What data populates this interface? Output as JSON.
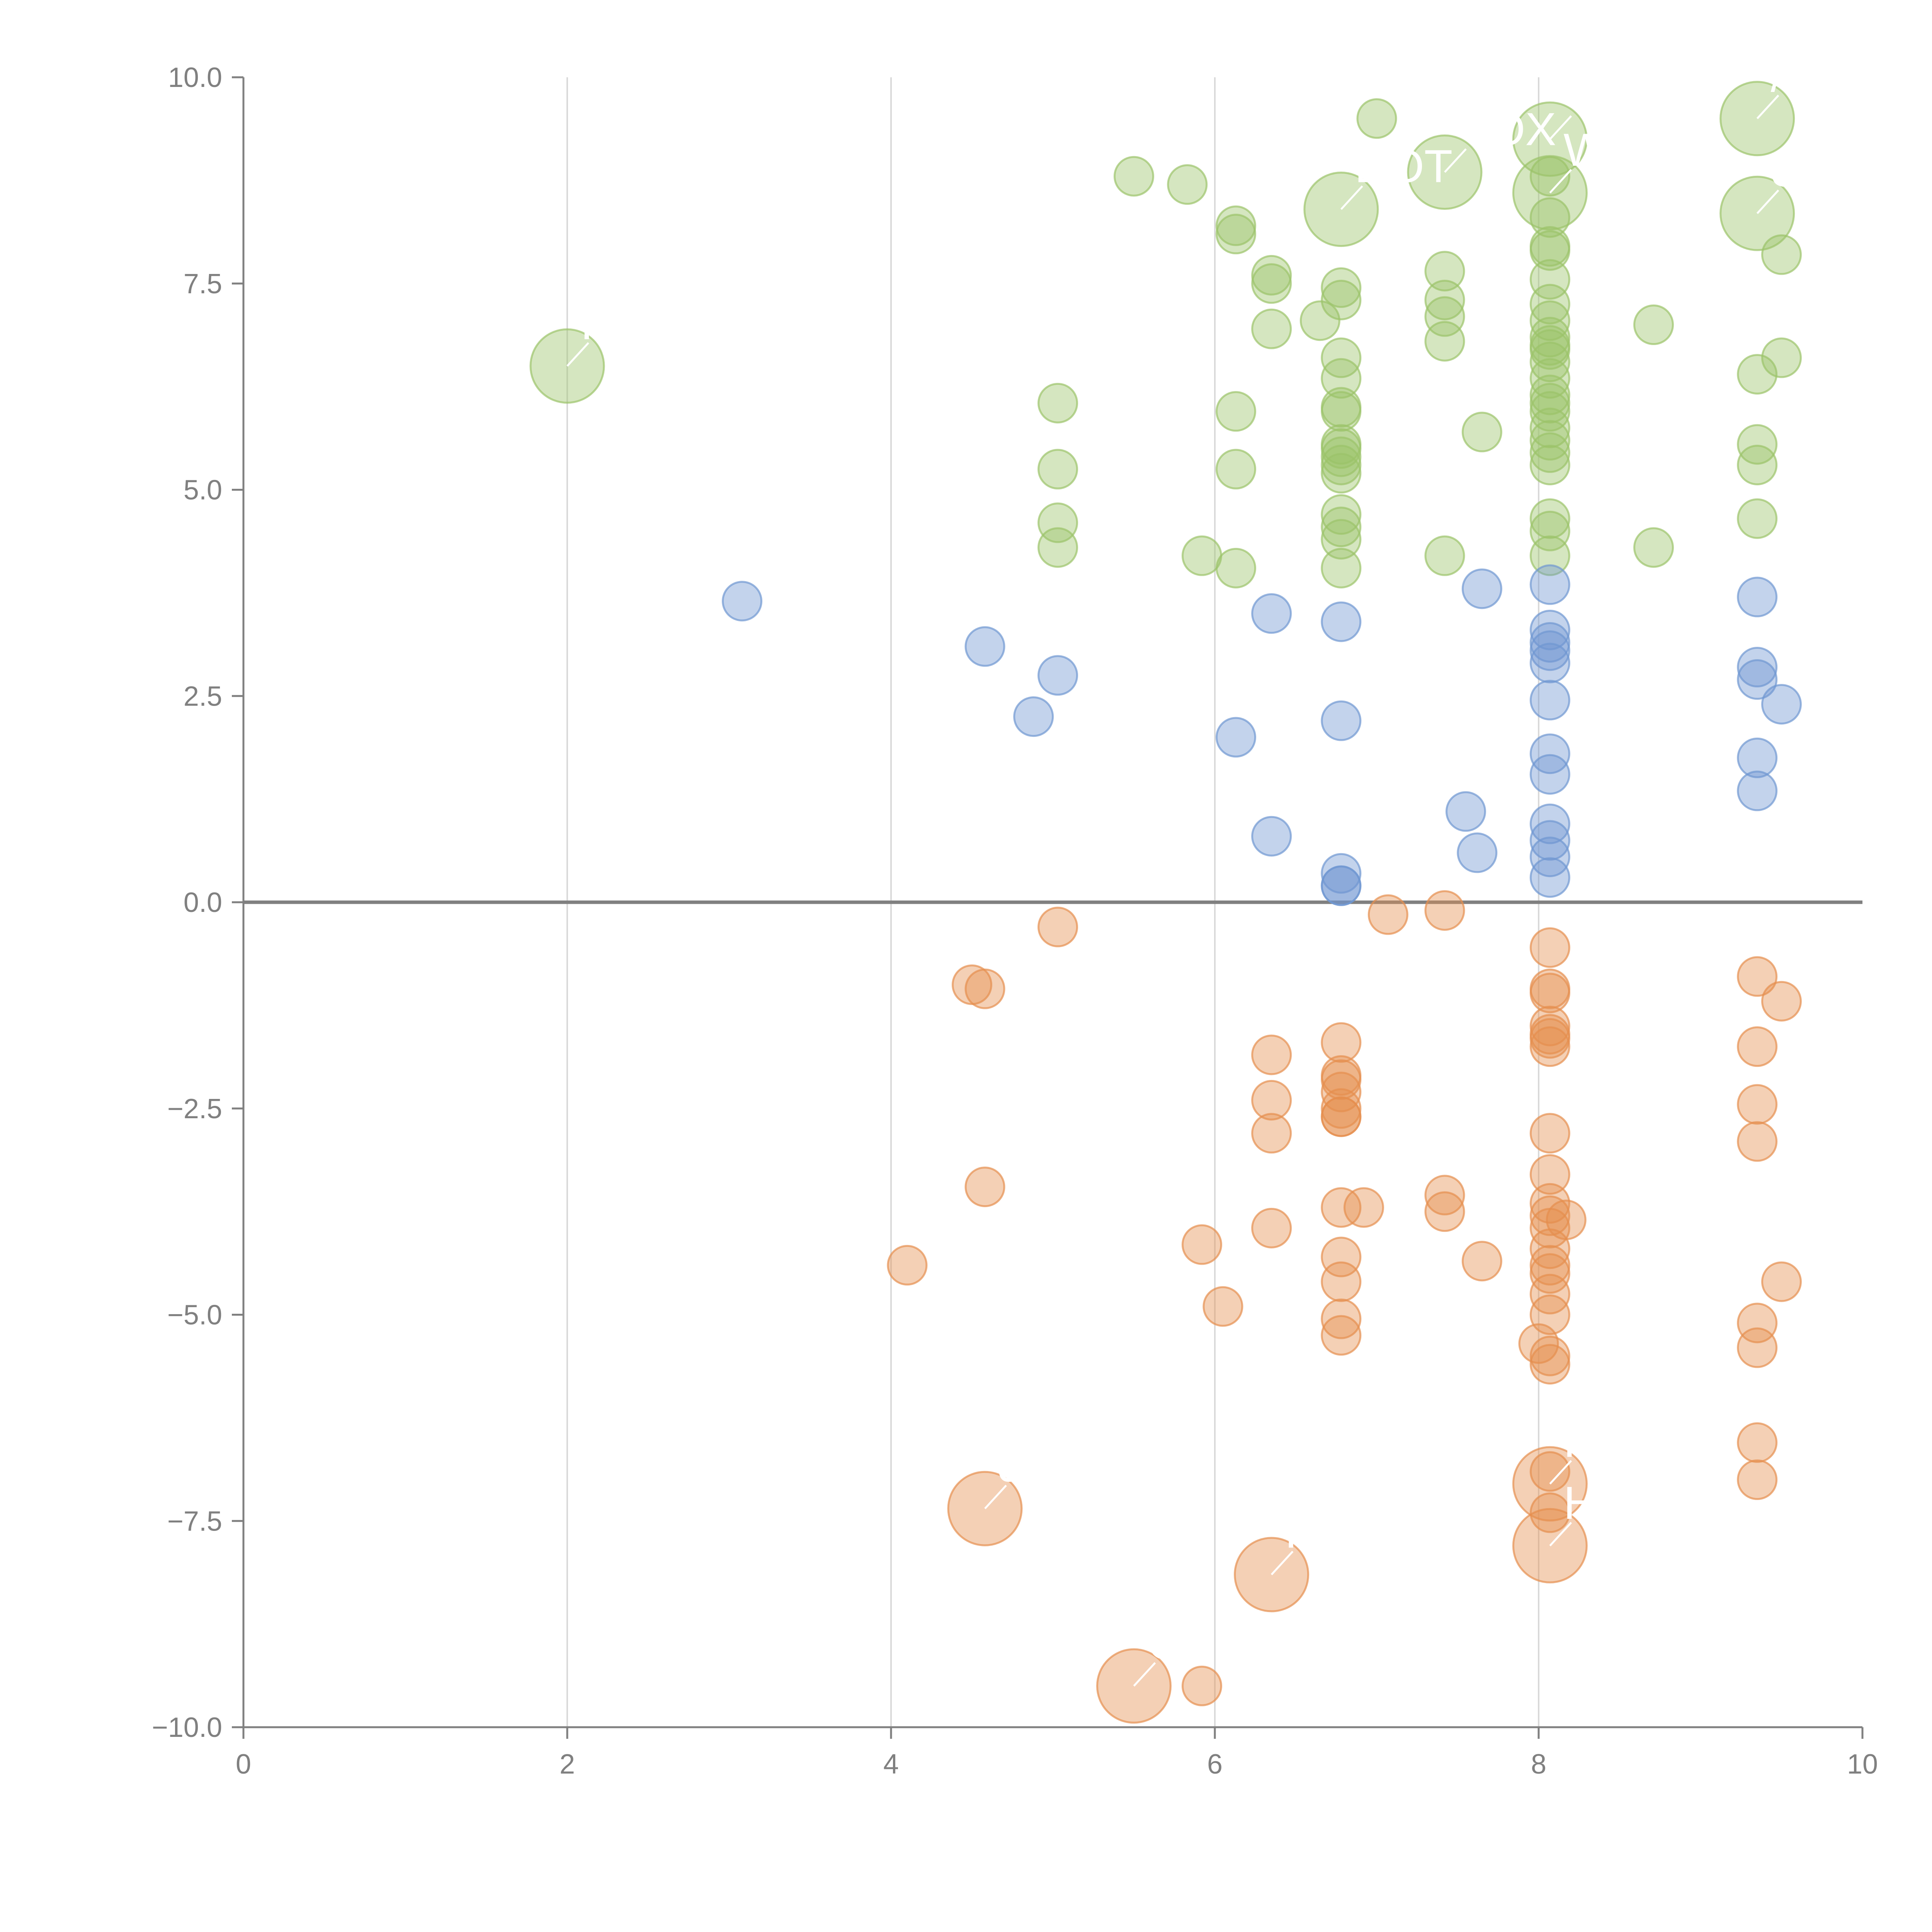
{
  "chart_data": {
    "type": "scatter",
    "title": "",
    "xlabel": "",
    "ylabel": "",
    "xlim": [
      0,
      10
    ],
    "ylim": [
      -10,
      10
    ],
    "x_ticks": [
      "0",
      "2",
      "4",
      "6",
      "8",
      "10"
    ],
    "y_ticks": [
      "10.0",
      "7.5",
      "5.0",
      "2.5",
      "0.0",
      "−2.5",
      "−5.0",
      "−7.5",
      "−10.0"
    ],
    "grid": "vertical",
    "legend": "none",
    "colors": {
      "green": "#9bc36a",
      "blue": "#6f97d1",
      "orange": "#e58f4e",
      "axis": "#808080",
      "grid": "#d9d9d9",
      "label": "#ffffff"
    },
    "series": [
      {
        "name": "green",
        "color": "#9bc36a",
        "points": [
          [
            7.0,
            9.5
          ],
          [
            5.5,
            8.8
          ],
          [
            5.83,
            8.7
          ],
          [
            6.13,
            8.2
          ],
          [
            6.13,
            8.1
          ],
          [
            6.35,
            7.6
          ],
          [
            6.35,
            7.5
          ],
          [
            6.35,
            6.95
          ],
          [
            6.65,
            7.05
          ],
          [
            6.78,
            7.45
          ],
          [
            6.78,
            7.3
          ],
          [
            6.78,
            6.6
          ],
          [
            6.78,
            6.35
          ],
          [
            6.78,
            6.0
          ],
          [
            6.78,
            5.95
          ],
          [
            6.78,
            5.55
          ],
          [
            6.78,
            5.5
          ],
          [
            6.78,
            5.4
          ],
          [
            6.78,
            5.3
          ],
          [
            6.78,
            5.2
          ],
          [
            6.78,
            4.7
          ],
          [
            6.78,
            4.55
          ],
          [
            6.78,
            4.4
          ],
          [
            6.78,
            4.05
          ],
          [
            7.42,
            7.65
          ],
          [
            7.42,
            7.3
          ],
          [
            7.42,
            7.1
          ],
          [
            7.42,
            6.8
          ],
          [
            7.42,
            4.2
          ],
          [
            7.65,
            5.7
          ],
          [
            8.07,
            8.8
          ],
          [
            8.07,
            8.3
          ],
          [
            8.07,
            7.95
          ],
          [
            8.07,
            7.9
          ],
          [
            8.07,
            7.55
          ],
          [
            8.07,
            7.25
          ],
          [
            8.07,
            7.05
          ],
          [
            8.07,
            6.85
          ],
          [
            8.07,
            6.75
          ],
          [
            8.07,
            6.7
          ],
          [
            8.07,
            6.55
          ],
          [
            8.07,
            6.35
          ],
          [
            8.07,
            6.15
          ],
          [
            8.07,
            6.05
          ],
          [
            8.07,
            5.95
          ],
          [
            8.07,
            5.75
          ],
          [
            8.07,
            5.6
          ],
          [
            8.07,
            5.45
          ],
          [
            8.07,
            5.3
          ],
          [
            8.07,
            4.65
          ],
          [
            8.07,
            4.5
          ],
          [
            8.07,
            4.2
          ],
          [
            8.71,
            7.0
          ],
          [
            8.71,
            4.3
          ],
          [
            9.35,
            6.4
          ],
          [
            9.35,
            5.55
          ],
          [
            9.35,
            5.3
          ],
          [
            9.35,
            4.65
          ],
          [
            9.5,
            7.85
          ],
          [
            9.5,
            6.6
          ],
          [
            5.03,
            6.05
          ],
          [
            5.03,
            5.25
          ],
          [
            5.03,
            4.6
          ],
          [
            5.03,
            4.3
          ],
          [
            5.92,
            4.2
          ],
          [
            6.13,
            5.95
          ],
          [
            6.13,
            5.25
          ],
          [
            6.13,
            4.05
          ]
        ],
        "large_points": [
          [
            2.0,
            6.5
          ],
          [
            6.78,
            8.4
          ],
          [
            7.42,
            8.85
          ],
          [
            8.07,
            9.25
          ],
          [
            8.07,
            8.6
          ],
          [
            9.35,
            9.5
          ],
          [
            9.35,
            8.35
          ]
        ]
      },
      {
        "name": "blue",
        "color": "#6f97d1",
        "points": [
          [
            3.08,
            3.65
          ],
          [
            4.58,
            3.1
          ],
          [
            5.03,
            2.75
          ],
          [
            4.88,
            2.25
          ],
          [
            6.13,
            2.0
          ],
          [
            6.35,
            3.5
          ],
          [
            6.35,
            0.8
          ],
          [
            6.78,
            3.4
          ],
          [
            6.78,
            2.2
          ],
          [
            6.78,
            0.35
          ],
          [
            6.78,
            0.2
          ],
          [
            6.78,
            0.2
          ],
          [
            7.55,
            1.1
          ],
          [
            7.62,
            0.6
          ],
          [
            7.65,
            3.8
          ],
          [
            8.07,
            3.85
          ],
          [
            8.07,
            3.3
          ],
          [
            8.07,
            3.15
          ],
          [
            8.07,
            3.05
          ],
          [
            8.07,
            2.9
          ],
          [
            8.07,
            2.45
          ],
          [
            8.07,
            1.8
          ],
          [
            8.07,
            1.55
          ],
          [
            8.07,
            0.95
          ],
          [
            8.07,
            0.75
          ],
          [
            8.07,
            0.55
          ],
          [
            8.07,
            0.3
          ],
          [
            9.35,
            3.7
          ],
          [
            9.35,
            2.85
          ],
          [
            9.35,
            2.7
          ],
          [
            9.35,
            1.75
          ],
          [
            9.35,
            1.35
          ],
          [
            9.5,
            2.4
          ]
        ],
        "large_points": []
      },
      {
        "name": "orange",
        "color": "#e58f4e",
        "points": [
          [
            5.03,
            -0.3
          ],
          [
            4.5,
            -1.0
          ],
          [
            4.58,
            -1.05
          ],
          [
            4.58,
            -3.45
          ],
          [
            4.1,
            -4.4
          ],
          [
            5.92,
            -4.15
          ],
          [
            6.05,
            -4.9
          ],
          [
            5.92,
            -9.5
          ],
          [
            6.35,
            -1.85
          ],
          [
            6.35,
            -2.4
          ],
          [
            6.35,
            -2.8
          ],
          [
            6.35,
            -3.95
          ],
          [
            6.78,
            -1.7
          ],
          [
            6.78,
            -2.1
          ],
          [
            6.78,
            -2.15
          ],
          [
            6.78,
            -2.3
          ],
          [
            6.78,
            -2.5
          ],
          [
            6.78,
            -2.6
          ],
          [
            6.78,
            -2.6
          ],
          [
            6.78,
            -3.7
          ],
          [
            6.78,
            -4.3
          ],
          [
            6.78,
            -4.6
          ],
          [
            6.78,
            -5.05
          ],
          [
            6.78,
            -5.25
          ],
          [
            6.92,
            -3.7
          ],
          [
            7.07,
            -0.15
          ],
          [
            7.42,
            -0.1
          ],
          [
            7.42,
            -3.55
          ],
          [
            7.42,
            -3.75
          ],
          [
            7.65,
            -4.35
          ],
          [
            8.0,
            -5.35
          ],
          [
            8.07,
            -0.55
          ],
          [
            8.07,
            -1.05
          ],
          [
            8.07,
            -1.1
          ],
          [
            8.07,
            -1.5
          ],
          [
            8.07,
            -1.6
          ],
          [
            8.07,
            -1.65
          ],
          [
            8.07,
            -1.75
          ],
          [
            8.07,
            -2.8
          ],
          [
            8.07,
            -3.3
          ],
          [
            8.07,
            -3.65
          ],
          [
            8.07,
            -3.8
          ],
          [
            8.07,
            -3.95
          ],
          [
            8.07,
            -4.2
          ],
          [
            8.07,
            -4.4
          ],
          [
            8.07,
            -4.5
          ],
          [
            8.07,
            -4.75
          ],
          [
            8.07,
            -5.0
          ],
          [
            8.07,
            -5.5
          ],
          [
            8.07,
            -5.6
          ],
          [
            8.07,
            -6.9
          ],
          [
            8.07,
            -7.4
          ],
          [
            8.17,
            -3.85
          ],
          [
            9.35,
            -0.9
          ],
          [
            9.35,
            -1.75
          ],
          [
            9.35,
            -2.45
          ],
          [
            9.35,
            -2.9
          ],
          [
            9.35,
            -5.1
          ],
          [
            9.35,
            -5.4
          ],
          [
            9.35,
            -6.55
          ],
          [
            9.35,
            -7.0
          ],
          [
            9.5,
            -1.2
          ],
          [
            9.5,
            -4.6
          ]
        ],
        "large_points": [
          [
            4.58,
            -7.35
          ],
          [
            6.35,
            -8.15
          ],
          [
            5.5,
            -9.5
          ],
          [
            8.07,
            -7.05
          ],
          [
            8.07,
            -7.8
          ]
        ]
      }
    ],
    "annotations": [
      {
        "text": "P",
        "x": 2.0,
        "y": 6.5
      },
      {
        "text": "DOT",
        "x": 6.78,
        "y": 8.4
      },
      {
        "text": "VOX",
        "x": 7.42,
        "y": 8.85
      },
      {
        "text": "V",
        "x": 8.07,
        "y": 9.25
      },
      {
        "text": "W",
        "x": 8.07,
        "y": 8.6
      },
      {
        "text": "/",
        "x": 9.35,
        "y": 9.5
      },
      {
        "text": "SE",
        "x": 9.35,
        "y": 8.35
      },
      {
        "text": "JC",
        "x": 4.58,
        "y": -7.35
      },
      {
        "text": "P",
        "x": 6.35,
        "y": -8.15
      },
      {
        "text": "O",
        "x": 5.5,
        "y": -9.5
      },
      {
        "text": "H",
        "x": 8.07,
        "y": -7.05
      },
      {
        "text": "H",
        "x": 8.07,
        "y": -7.8
      }
    ]
  }
}
